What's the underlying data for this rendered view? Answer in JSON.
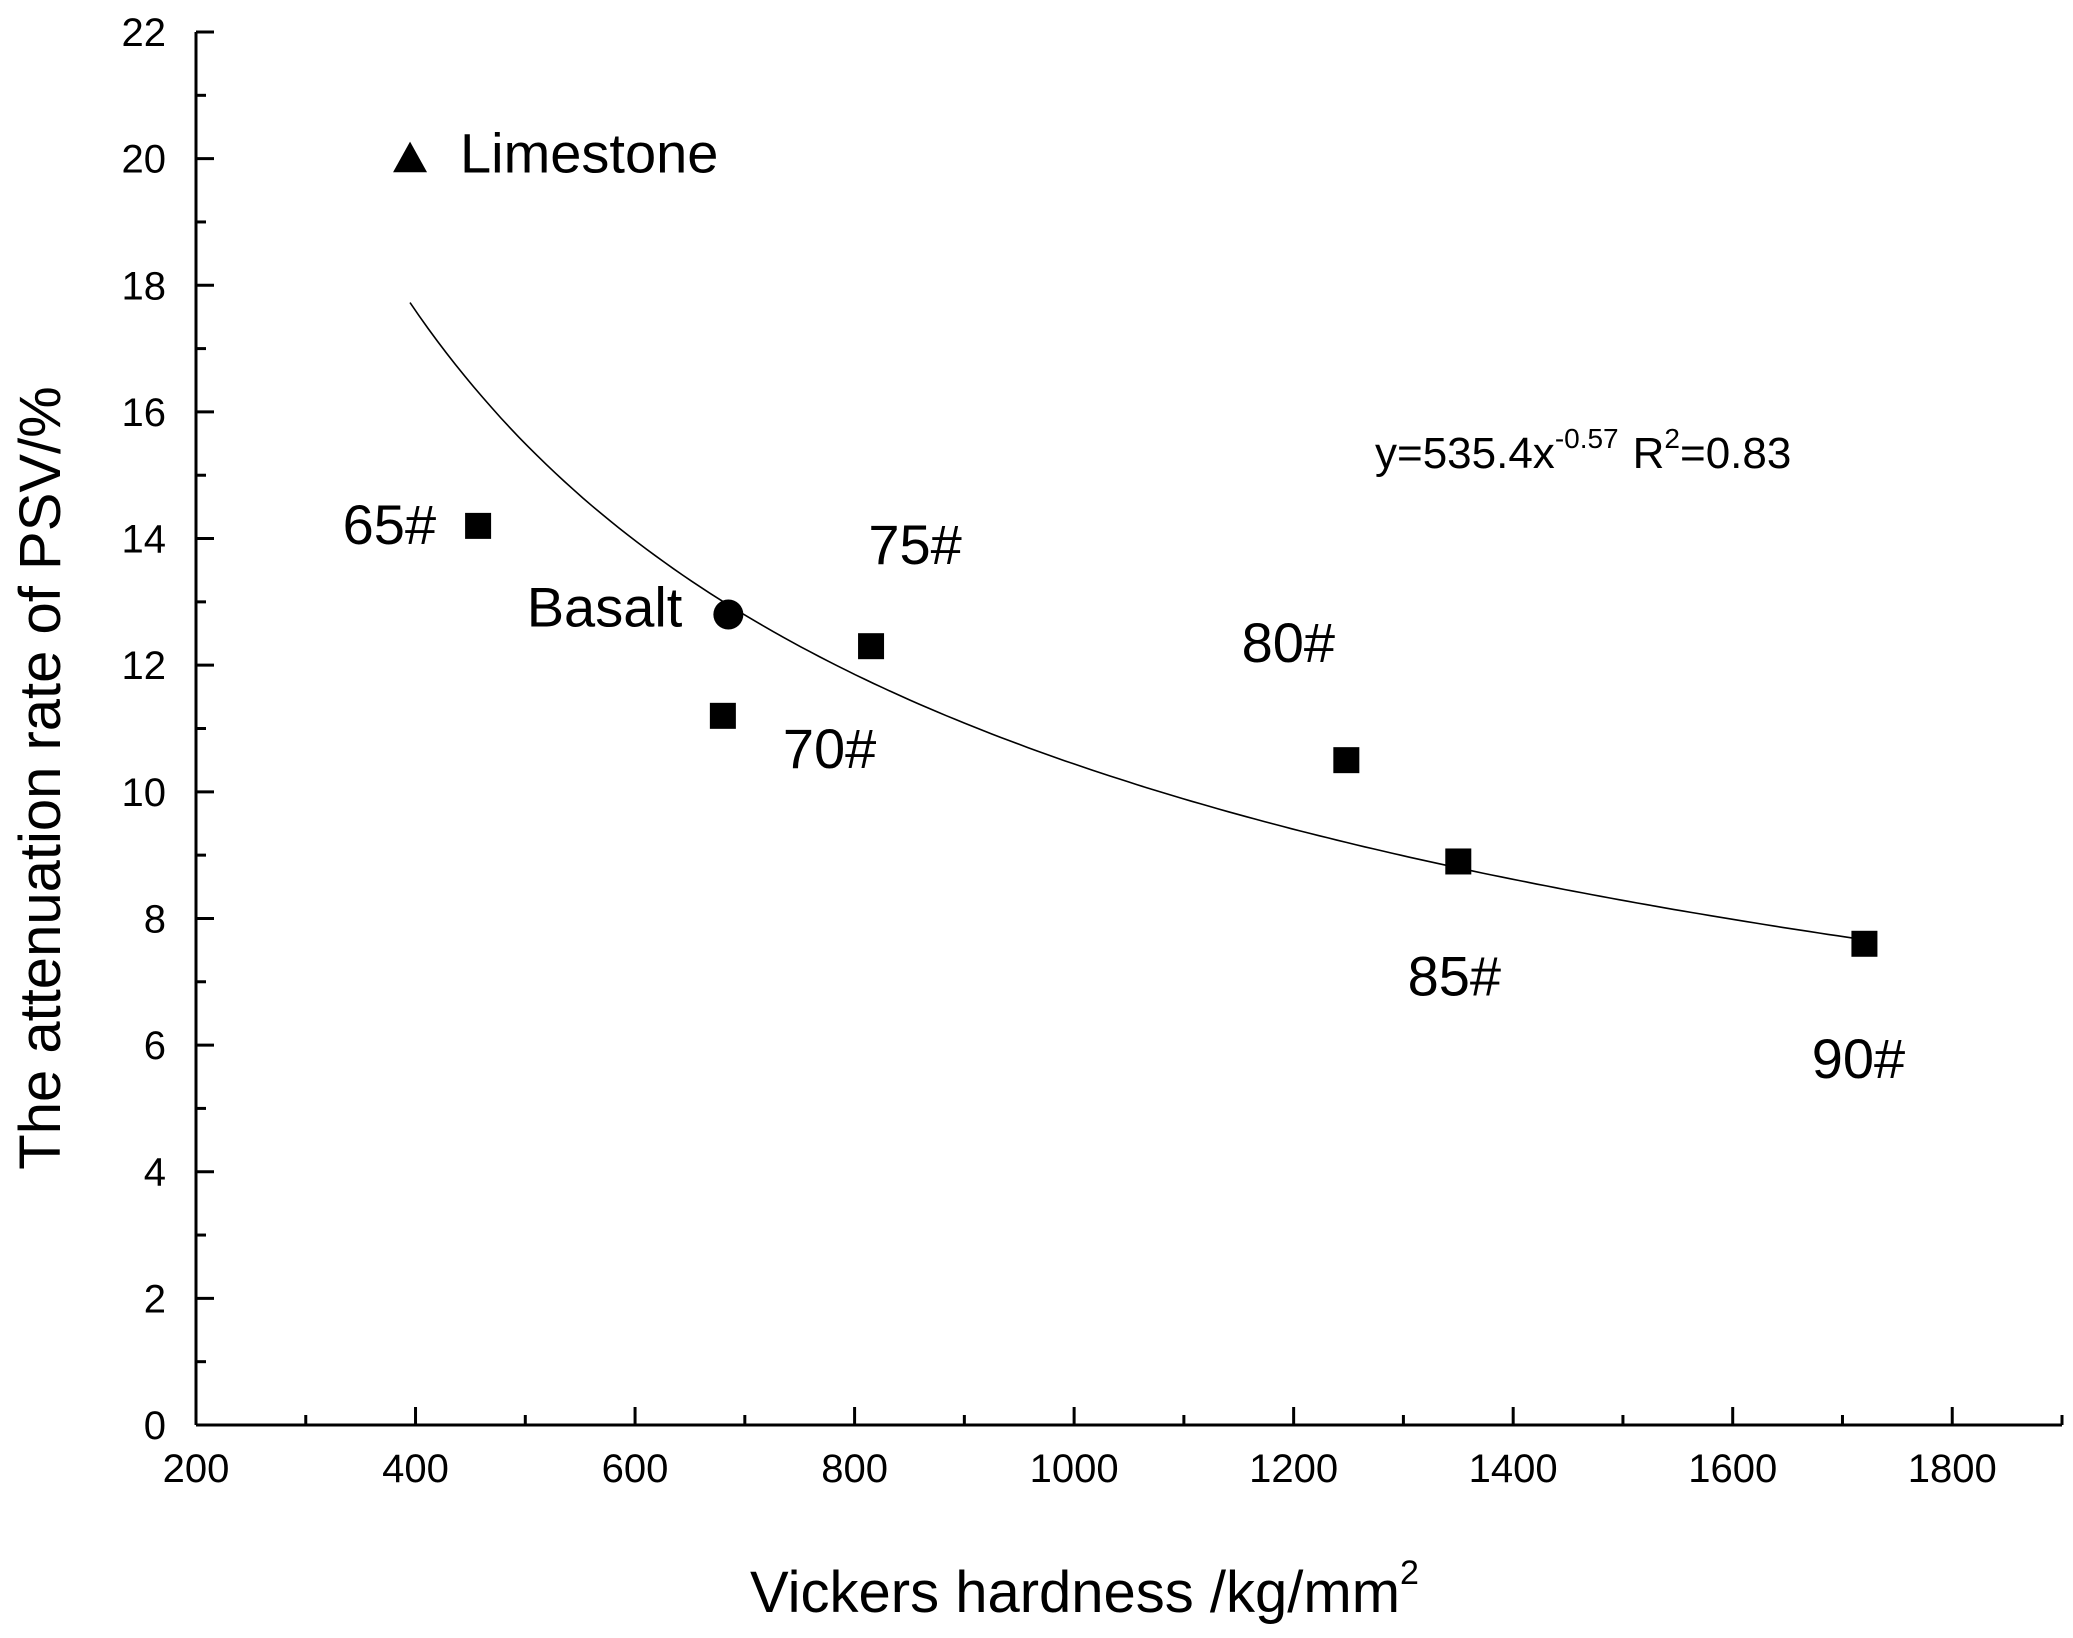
{
  "chart_data": {
    "type": "scatter",
    "title": "",
    "xlabel": "Vickers hardness /kg/mm",
    "xlabel_superscript": "2",
    "ylabel": "The attenuation rate of PSV/%",
    "xlim": [
      200,
      1900
    ],
    "ylim": [
      0,
      22
    ],
    "x_ticks": [
      200,
      400,
      600,
      800,
      1000,
      1200,
      1400,
      1600,
      1800
    ],
    "y_ticks": [
      0,
      2,
      4,
      6,
      8,
      10,
      12,
      14,
      16,
      18,
      20,
      22
    ],
    "grid": false,
    "points": [
      {
        "label": "Limestone",
        "x": 395,
        "y": 20.0,
        "marker": "triangle"
      },
      {
        "label": "65#",
        "x": 457,
        "y": 14.2,
        "marker": "square"
      },
      {
        "label": "Basalt",
        "x": 685,
        "y": 12.8,
        "marker": "circle"
      },
      {
        "label": "70#",
        "x": 680,
        "y": 11.2,
        "marker": "square"
      },
      {
        "label": "75#",
        "x": 815,
        "y": 12.3,
        "marker": "square"
      },
      {
        "label": "80#",
        "x": 1248,
        "y": 10.5,
        "marker": "square"
      },
      {
        "label": "85#",
        "x": 1350,
        "y": 8.9,
        "marker": "square"
      },
      {
        "label": "90#",
        "x": 1720,
        "y": 7.6,
        "marker": "square"
      }
    ],
    "fit": {
      "a": 535.4,
      "b": -0.57,
      "x_range": [
        395,
        1720
      ],
      "equation_text": "y=535.4x",
      "exponent_text": "-0.57",
      "r2_prefix": "R",
      "r2_exp": "2",
      "r2_value": "=0.83"
    }
  }
}
